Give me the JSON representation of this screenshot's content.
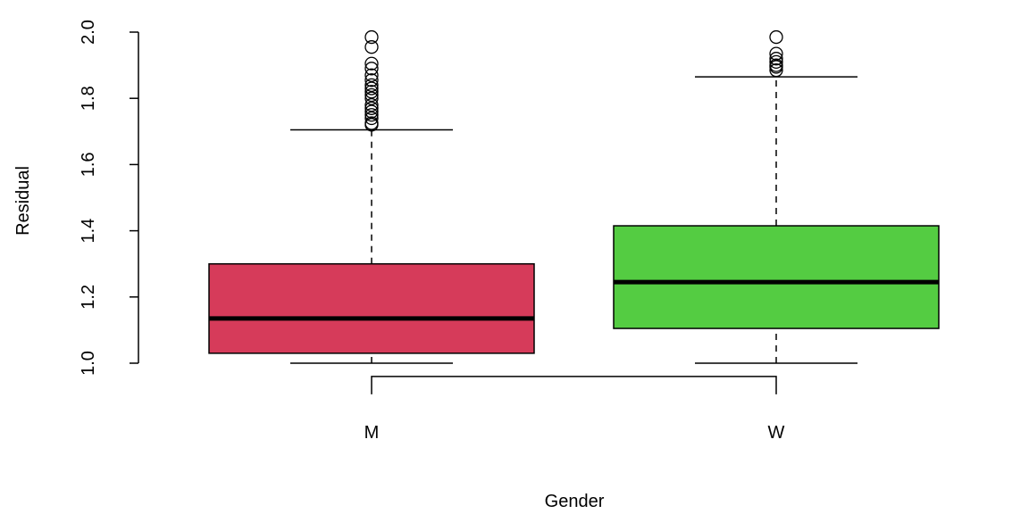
{
  "chart_data": {
    "type": "boxplot",
    "xlabel": "Gender",
    "ylabel": "Residual",
    "ylim": [
      1.0,
      2.0
    ],
    "yticks": [
      1.0,
      1.2,
      1.4,
      1.6,
      1.8,
      2.0
    ],
    "ytick_labels": [
      "1.0",
      "1.2",
      "1.4",
      "1.6",
      "1.8",
      "2.0"
    ],
    "grid": false,
    "legend": "none",
    "categories": [
      "M",
      "W"
    ],
    "boxes": [
      {
        "category": "M",
        "color": "#d63b5a",
        "whisker_low": 1.0,
        "q1": 1.03,
        "median": 1.135,
        "q3": 1.3,
        "whisker_high": 1.705,
        "outliers": [
          1.985,
          1.955,
          1.905,
          1.89,
          1.87,
          1.855,
          1.84,
          1.83,
          1.82,
          1.81,
          1.8,
          1.78,
          1.77,
          1.76,
          1.75,
          1.74,
          1.725,
          1.72
        ]
      },
      {
        "category": "W",
        "color": "#54cc42",
        "whisker_low": 1.0,
        "q1": 1.105,
        "median": 1.245,
        "q3": 1.415,
        "whisker_high": 1.865,
        "outliers": [
          1.985,
          1.935,
          1.92,
          1.91,
          1.9,
          1.895,
          1.885
        ]
      }
    ],
    "bracket": {
      "from": "M",
      "to": "W",
      "y": 0.96
    }
  }
}
